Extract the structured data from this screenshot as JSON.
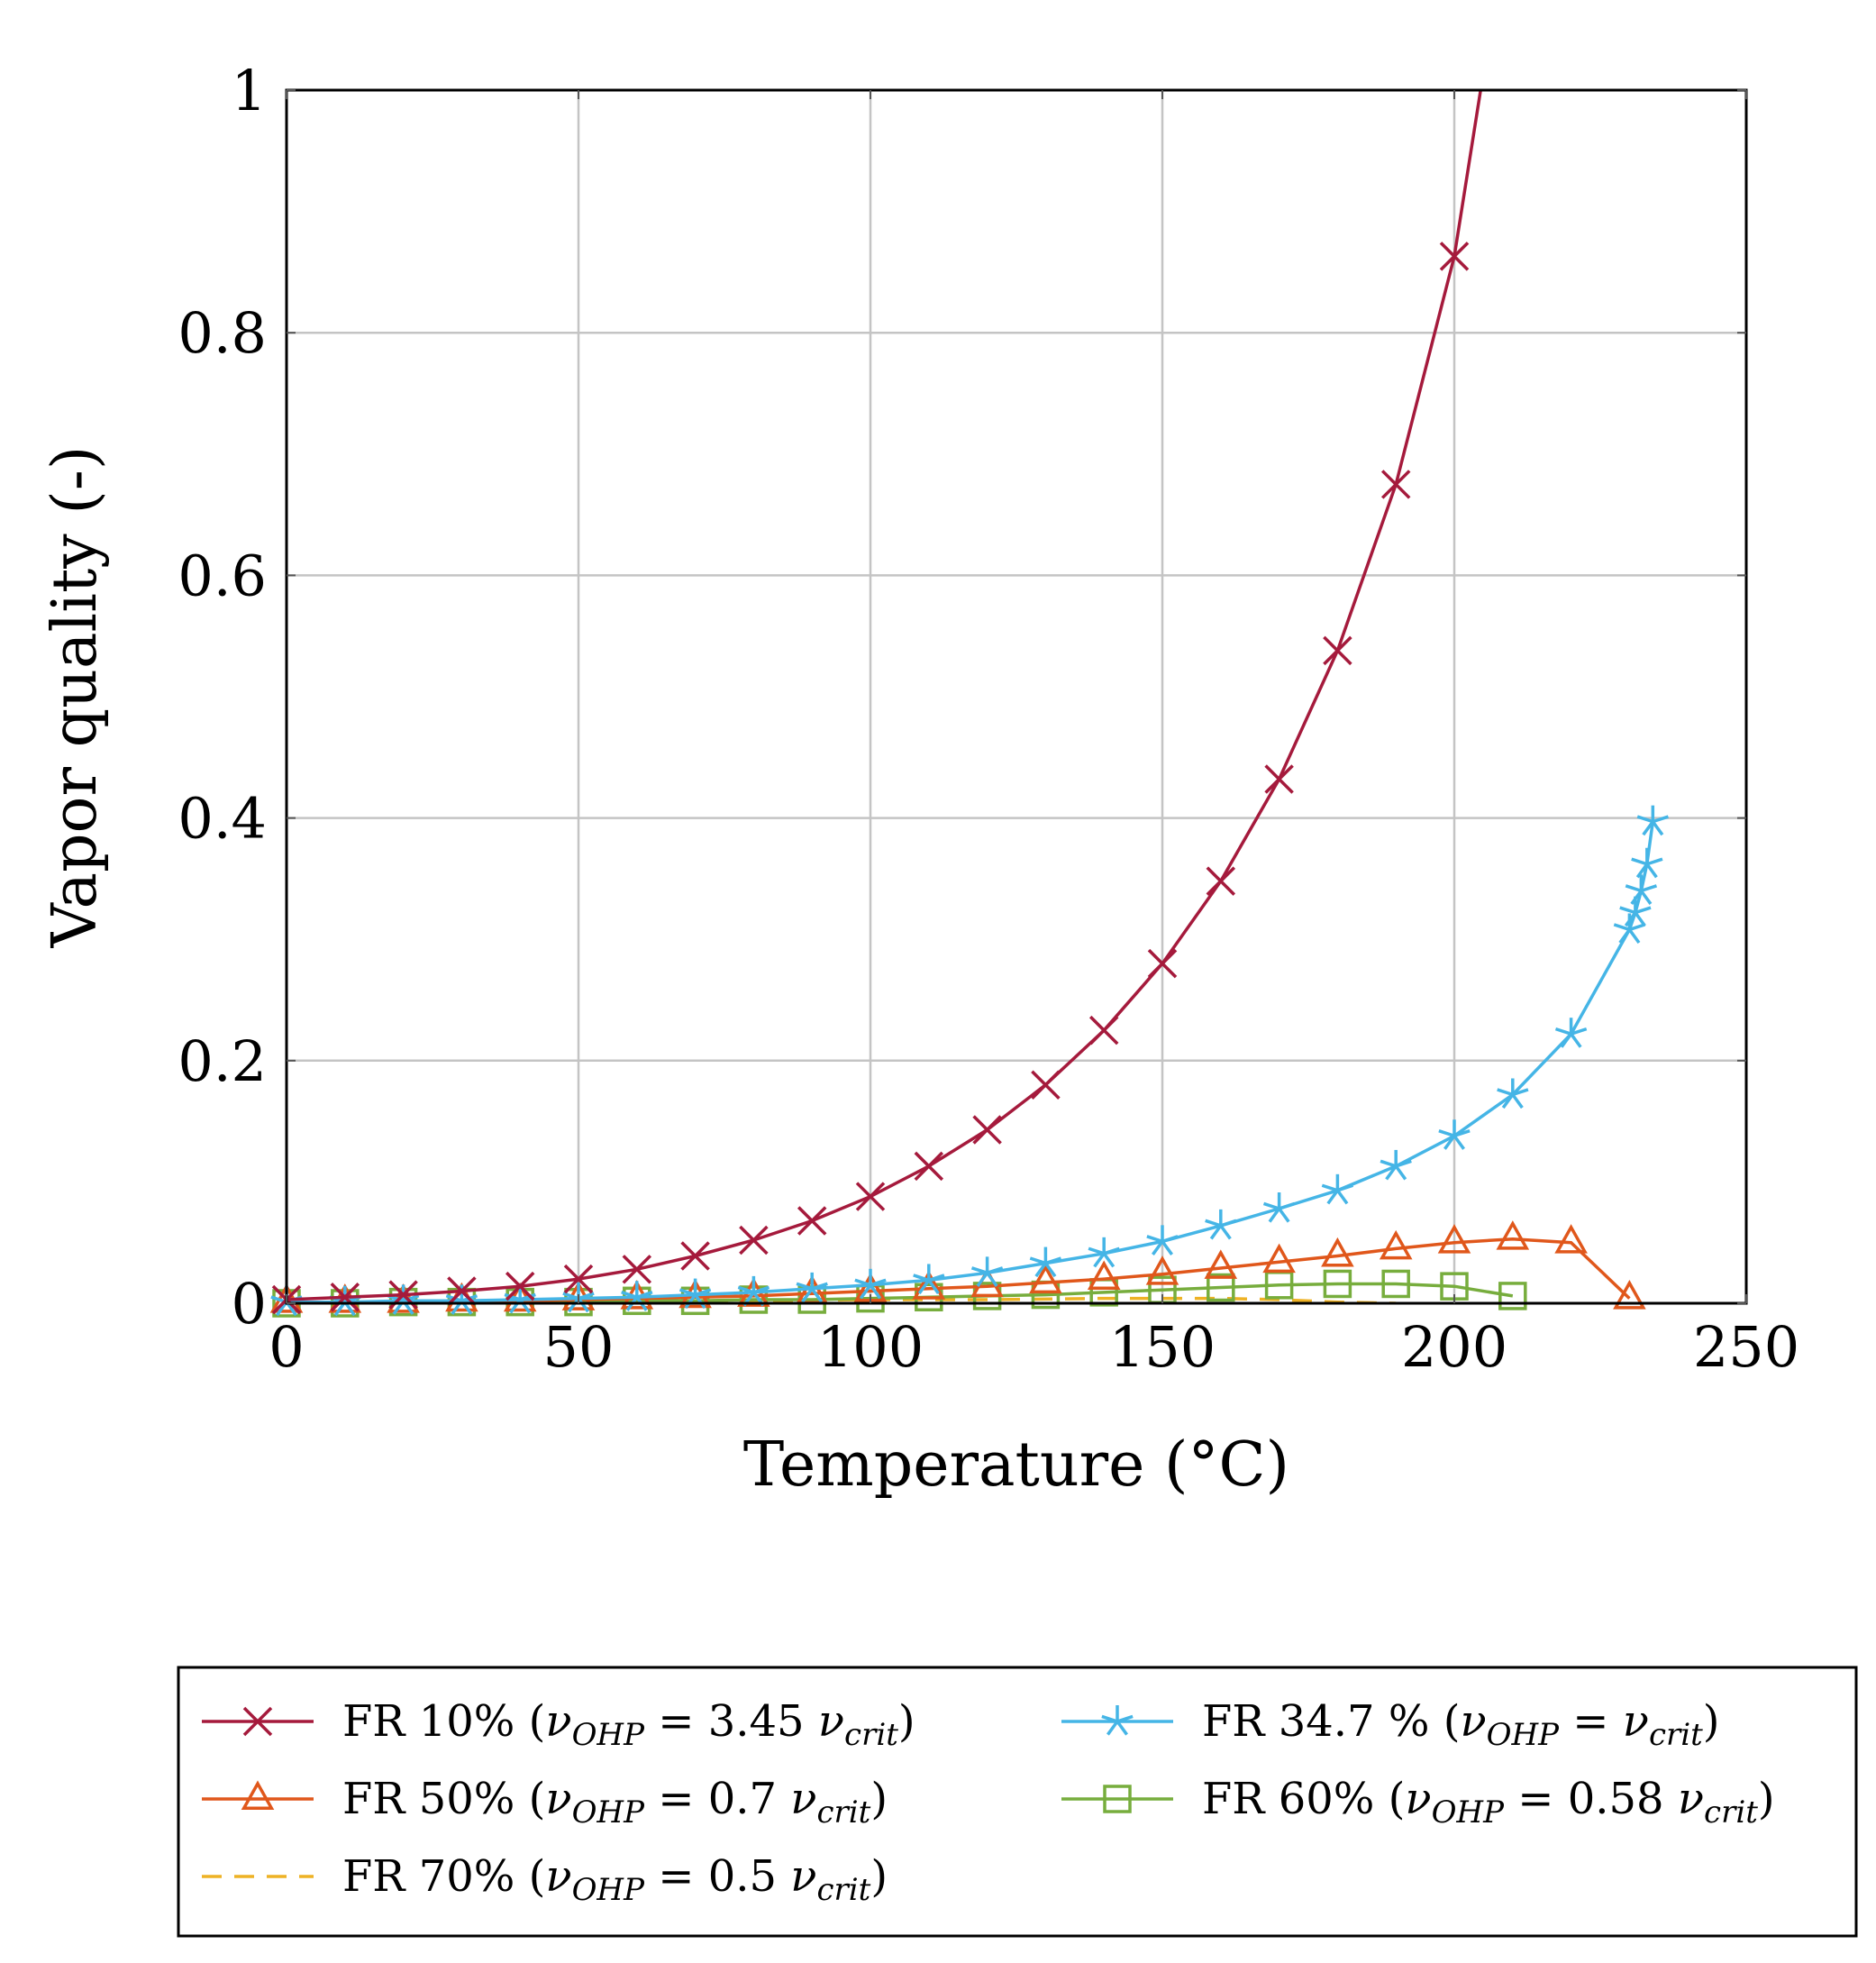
{
  "chart_data": {
    "type": "line",
    "title": "",
    "xlabel": "Temperature (°C)",
    "ylabel": "Vapor quality (-)",
    "xlim": [
      0,
      250
    ],
    "ylim": [
      0,
      1
    ],
    "xticks": [
      0,
      50,
      100,
      150,
      200,
      250
    ],
    "xtick_labels": [
      "0",
      "50",
      "100",
      "150",
      "200",
      "250"
    ],
    "yticks": [
      0,
      0.2,
      0.4,
      0.6,
      0.8,
      1
    ],
    "ytick_labels": [
      "0",
      "0.2",
      "0.4",
      "0.6",
      "0.8",
      "1"
    ],
    "grid": true,
    "legend_position": "below",
    "series": [
      {
        "name": "FR 10% (νOHP = 3.45 νcrit)",
        "label_prefix": "FR 10% (",
        "label_value": "= 3.45",
        "color": "#a51a3c",
        "marker": "x",
        "dashed": false,
        "x": [
          0,
          10,
          20,
          30,
          40,
          50,
          60,
          70,
          80,
          90,
          100,
          110,
          120,
          130,
          140,
          150,
          160,
          170,
          180,
          190,
          200,
          204.5
        ],
        "y": [
          0.003,
          0.005,
          0.007,
          0.01,
          0.014,
          0.02,
          0.028,
          0.039,
          0.052,
          0.068,
          0.088,
          0.113,
          0.143,
          0.18,
          0.225,
          0.28,
          0.348,
          0.432,
          0.538,
          0.675,
          0.863,
          1.0
        ]
      },
      {
        "name": "FR 34.7 % (νOHP = νcrit)",
        "label_prefix": "FR 34.7 % (",
        "label_value": "=",
        "color": "#45b5e6",
        "marker": "star",
        "dashed": false,
        "x": [
          0,
          10,
          20,
          30,
          40,
          50,
          60,
          70,
          80,
          90,
          100,
          110,
          120,
          130,
          140,
          150,
          160,
          170,
          180,
          190,
          200,
          210,
          220,
          230,
          231,
          232,
          233,
          234
        ],
        "y": [
          0.001,
          0.001,
          0.002,
          0.002,
          0.003,
          0.004,
          0.005,
          0.007,
          0.009,
          0.012,
          0.015,
          0.019,
          0.025,
          0.033,
          0.041,
          0.051,
          0.064,
          0.078,
          0.093,
          0.113,
          0.138,
          0.172,
          0.222,
          0.308,
          0.322,
          0.34,
          0.362,
          0.397
        ]
      },
      {
        "name": "FR 50% (νOHP = 0.7 νcrit)",
        "label_prefix": "FR 50% (",
        "label_value": "= 0.7",
        "color": "#e0571b",
        "marker": "triangle",
        "dashed": false,
        "x": [
          0,
          10,
          20,
          30,
          40,
          50,
          60,
          70,
          80,
          90,
          100,
          110,
          120,
          130,
          140,
          150,
          160,
          170,
          180,
          190,
          200,
          210,
          220,
          230
        ],
        "y": [
          0.001,
          0.001,
          0.001,
          0.002,
          0.002,
          0.003,
          0.004,
          0.005,
          0.006,
          0.008,
          0.01,
          0.012,
          0.014,
          0.017,
          0.02,
          0.024,
          0.029,
          0.034,
          0.039,
          0.045,
          0.05,
          0.053,
          0.05,
          0.004
        ]
      },
      {
        "name": "FR 60% (νOHP = 0.58 νcrit)",
        "label_prefix": "FR 60% (",
        "label_value": "= 0.58",
        "color": "#77ad3d",
        "marker": "square",
        "dashed": false,
        "x": [
          0,
          10,
          20,
          30,
          40,
          50,
          60,
          70,
          80,
          90,
          100,
          110,
          120,
          130,
          140,
          150,
          160,
          170,
          180,
          190,
          200,
          210
        ],
        "y": [
          0.0,
          0.0,
          0.001,
          0.001,
          0.001,
          0.001,
          0.002,
          0.002,
          0.003,
          0.003,
          0.004,
          0.005,
          0.006,
          0.007,
          0.009,
          0.011,
          0.013,
          0.015,
          0.016,
          0.016,
          0.014,
          0.006
        ]
      },
      {
        "name": "FR 70% (νOHP = 0.5 νcrit)",
        "label_prefix": "FR 70% (",
        "label_value": "= 0.5",
        "color": "#eeb225",
        "marker": "none",
        "dashed": true,
        "x": [
          0,
          20,
          40,
          60,
          80,
          100,
          120,
          140,
          160,
          170,
          180,
          190
        ],
        "y": [
          0.0,
          0.0,
          0.001,
          0.001,
          0.002,
          0.003,
          0.003,
          0.004,
          0.004,
          0.003,
          0.001,
          0.0
        ]
      }
    ],
    "legend_common": {
      "nu": "ν",
      "ohp_sub": "OHP",
      "crit_sub": "crit",
      "close": ")"
    },
    "baseline_series_color": "#000000"
  }
}
